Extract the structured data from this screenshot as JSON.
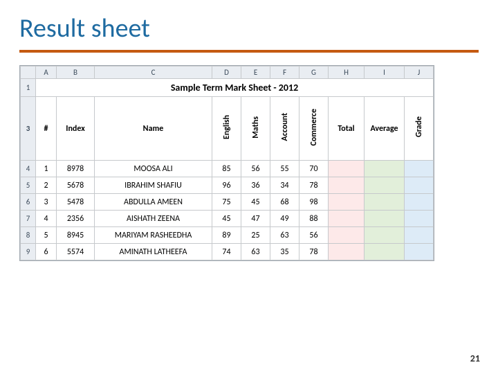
{
  "title": "Result sheet",
  "page_number": "21",
  "colors": {
    "title_color": "#1f6ba1",
    "divider_color": "#c55a11",
    "header_bg": "#e9edf2",
    "border": "#c6c9cc",
    "fill_total": "#fde9e9",
    "fill_average": "#e2efda",
    "fill_grade": "#ddebf7"
  },
  "spreadsheet": {
    "column_letters": [
      "A",
      "B",
      "C",
      "D",
      "E",
      "F",
      "G",
      "H",
      "I",
      "J"
    ],
    "row_numbers": [
      "1",
      "3",
      "4",
      "5",
      "6",
      "7",
      "8",
      "9"
    ],
    "merged_title": "Sample Term Mark Sheet - 2012",
    "headers": {
      "num": "#",
      "index": "Index",
      "name": "Name",
      "english": "English",
      "maths": "Maths",
      "account": "Account",
      "commerce": "Commerce",
      "total": "Total",
      "average": "Average",
      "grade": "Grade"
    },
    "rows": [
      {
        "n": "1",
        "index": "8978",
        "name": "MOOSA ALI",
        "english": "85",
        "maths": "56",
        "account": "55",
        "commerce": "70"
      },
      {
        "n": "2",
        "index": "5678",
        "name": "IBRAHIM SHAFIU",
        "english": "96",
        "maths": "36",
        "account": "34",
        "commerce": "78"
      },
      {
        "n": "3",
        "index": "5478",
        "name": "ABDULLA AMEEN",
        "english": "75",
        "maths": "45",
        "account": "68",
        "commerce": "98"
      },
      {
        "n": "4",
        "index": "2356",
        "name": "AISHATH ZEENA",
        "english": "45",
        "maths": "47",
        "account": "49",
        "commerce": "88"
      },
      {
        "n": "5",
        "index": "8945",
        "name": "MARIYAM RASHEEDHA",
        "english": "89",
        "maths": "25",
        "account": "63",
        "commerce": "56"
      },
      {
        "n": "6",
        "index": "5574",
        "name": "AMINATH LATHEEFA",
        "english": "74",
        "maths": "63",
        "account": "35",
        "commerce": "78"
      }
    ]
  }
}
